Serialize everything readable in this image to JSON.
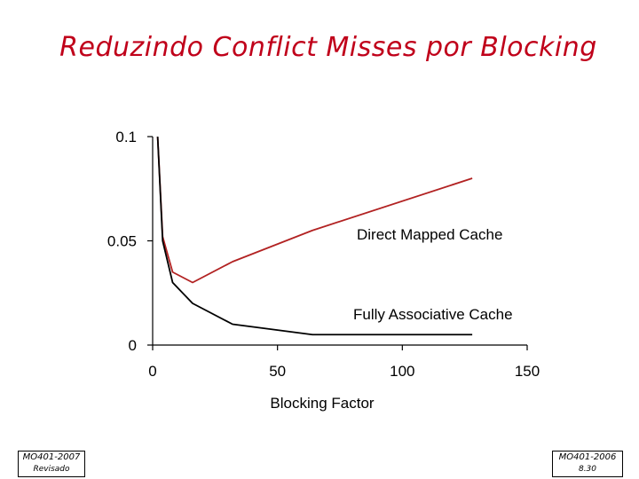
{
  "title": "Reduzindo Conflict Misses por Blocking",
  "footer": {
    "left_line1": "MO401-2007",
    "left_line2": "Revisado",
    "right_line1": "MO401-2006",
    "right_line2": "8.30"
  },
  "colors": {
    "title": "#c0001a",
    "direct_mapped": "#b22222",
    "fully_associative": "#000000"
  },
  "chart_data": {
    "type": "line",
    "title": "",
    "xlabel": "Blocking Factor",
    "ylabel": "",
    "xlim": [
      0,
      150
    ],
    "ylim": [
      0,
      0.1
    ],
    "x_ticks": [
      "0",
      "50",
      "100",
      "150"
    ],
    "y_ticks": [
      "0",
      "0.05",
      "0.1"
    ],
    "grid": false,
    "series": [
      {
        "name": "Direct Mapped Cache",
        "x": [
          2,
          4,
          8,
          16,
          32,
          64,
          128
        ],
        "y": [
          0.1,
          0.052,
          0.035,
          0.03,
          0.04,
          0.055,
          0.08
        ]
      },
      {
        "name": "Fully Associative Cache",
        "x": [
          2,
          4,
          8,
          16,
          32,
          64,
          128
        ],
        "y": [
          0.1,
          0.05,
          0.03,
          0.02,
          0.01,
          0.005,
          0.005
        ]
      }
    ]
  }
}
